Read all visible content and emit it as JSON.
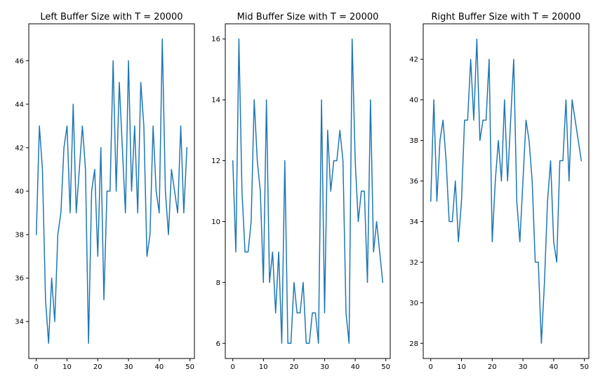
{
  "chart_data": [
    {
      "type": "line",
      "title": "Left Buffer Size with T = 20000",
      "xlabel": "",
      "ylabel": "",
      "xlim": [
        -2.45,
        51.45
      ],
      "ylim": [
        32.3,
        47.7
      ],
      "xticks": [
        0,
        10,
        20,
        30,
        40,
        50
      ],
      "yticks": [
        34,
        36,
        38,
        40,
        42,
        44,
        46
      ],
      "color": "#1f77b4",
      "grid": false,
      "x": [
        0,
        1,
        2,
        3,
        4,
        5,
        6,
        7,
        8,
        9,
        10,
        11,
        12,
        13,
        14,
        15,
        16,
        17,
        18,
        19,
        20,
        21,
        22,
        23,
        24,
        25,
        26,
        27,
        28,
        29,
        30,
        31,
        32,
        33,
        34,
        35,
        36,
        37,
        38,
        39,
        40,
        41,
        42,
        43,
        44,
        45,
        46,
        47,
        48,
        49
      ],
      "y": [
        38,
        43,
        41,
        35,
        33,
        36,
        34,
        38,
        39,
        42,
        43,
        39,
        44,
        39,
        41,
        43,
        41,
        33,
        40,
        41,
        37,
        42,
        35,
        40,
        40,
        46,
        40,
        45,
        42,
        39,
        46,
        40,
        43,
        39,
        45,
        43,
        37,
        38,
        43,
        40,
        39,
        47,
        40,
        38,
        41,
        40,
        39,
        43,
        39,
        42
      ]
    },
    {
      "type": "line",
      "title": "Mid Buffer Size with T = 20000",
      "xlabel": "",
      "ylabel": "",
      "xlim": [
        -2.45,
        51.45
      ],
      "ylim": [
        5.5,
        16.5
      ],
      "xticks": [
        0,
        10,
        20,
        30,
        40,
        50
      ],
      "yticks": [
        6,
        8,
        10,
        12,
        14,
        16
      ],
      "color": "#1f77b4",
      "grid": false,
      "x": [
        0,
        1,
        2,
        3,
        4,
        5,
        6,
        7,
        8,
        9,
        10,
        11,
        12,
        13,
        14,
        15,
        16,
        17,
        18,
        19,
        20,
        21,
        22,
        23,
        24,
        25,
        26,
        27,
        28,
        29,
        30,
        31,
        32,
        33,
        34,
        35,
        36,
        37,
        38,
        39,
        40,
        41,
        42,
        43,
        44,
        45,
        46,
        47,
        48,
        49
      ],
      "y": [
        12,
        9,
        16,
        11,
        9,
        9,
        10,
        14,
        12,
        11,
        8,
        14,
        8,
        9,
        7,
        9,
        6,
        12,
        6,
        6,
        8,
        7,
        7,
        8,
        6,
        6,
        7,
        7,
        6,
        14,
        7,
        13,
        11,
        12,
        12,
        13,
        12,
        7,
        6,
        16,
        12,
        10,
        11,
        11,
        8,
        14,
        9,
        10,
        9,
        8
      ]
    },
    {
      "type": "line",
      "title": "Right Buffer Size with T = 20000",
      "xlabel": "",
      "ylabel": "",
      "xlim": [
        -2.45,
        51.45
      ],
      "ylim": [
        27.25,
        43.75
      ],
      "xticks": [
        0,
        10,
        20,
        30,
        40,
        50
      ],
      "yticks": [
        28,
        30,
        32,
        34,
        36,
        38,
        40,
        42
      ],
      "color": "#1f77b4",
      "grid": false,
      "x": [
        0,
        1,
        2,
        3,
        4,
        5,
        6,
        7,
        8,
        9,
        10,
        11,
        12,
        13,
        14,
        15,
        16,
        17,
        18,
        19,
        20,
        21,
        22,
        23,
        24,
        25,
        26,
        27,
        28,
        29,
        30,
        31,
        32,
        33,
        34,
        35,
        36,
        37,
        38,
        39,
        40,
        41,
        42,
        43,
        44,
        45,
        46,
        47,
        48,
        49
      ],
      "y": [
        35,
        40,
        35,
        38,
        39,
        37,
        34,
        34,
        36,
        33,
        35,
        39,
        39,
        42,
        39,
        43,
        38,
        39,
        39,
        42,
        33,
        36,
        38,
        36,
        40,
        36,
        39,
        42,
        35,
        33,
        36,
        39,
        38,
        36,
        32,
        32,
        28,
        31,
        35,
        37,
        33,
        32,
        37,
        37,
        40,
        36,
        40,
        39,
        38,
        37
      ]
    }
  ]
}
